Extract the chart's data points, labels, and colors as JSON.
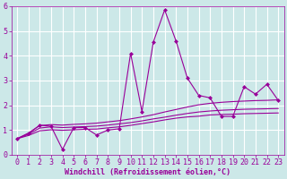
{
  "x_values": [
    0,
    1,
    2,
    3,
    4,
    5,
    6,
    7,
    8,
    9,
    10,
    11,
    12,
    13,
    14,
    15,
    16,
    17,
    18,
    19,
    20,
    21,
    22,
    23
  ],
  "line1_y": [
    0.65,
    0.85,
    1.2,
    1.15,
    0.22,
    1.1,
    1.1,
    0.8,
    1.0,
    1.05,
    4.1,
    1.75,
    4.55,
    5.85,
    4.6,
    3.1,
    2.4,
    2.3,
    1.55,
    1.55,
    2.75,
    2.45,
    2.85,
    2.2
  ],
  "line2_y": [
    0.65,
    0.88,
    1.18,
    1.22,
    1.2,
    1.23,
    1.25,
    1.28,
    1.33,
    1.38,
    1.45,
    1.53,
    1.62,
    1.73,
    1.83,
    1.93,
    2.02,
    2.08,
    2.12,
    2.15,
    2.17,
    2.19,
    2.2,
    2.22
  ],
  "line3_y": [
    0.65,
    0.83,
    1.08,
    1.13,
    1.1,
    1.12,
    1.14,
    1.16,
    1.2,
    1.25,
    1.3,
    1.37,
    1.45,
    1.52,
    1.6,
    1.67,
    1.73,
    1.77,
    1.8,
    1.82,
    1.84,
    1.85,
    1.86,
    1.87
  ],
  "line4_y": [
    0.65,
    0.78,
    0.97,
    1.01,
    0.99,
    1.01,
    1.03,
    1.04,
    1.09,
    1.13,
    1.19,
    1.26,
    1.33,
    1.41,
    1.48,
    1.53,
    1.56,
    1.61,
    1.63,
    1.64,
    1.66,
    1.67,
    1.68,
    1.69
  ],
  "line_color": "#990099",
  "bg_color": "#cce8e8",
  "grid_color": "#ffffff",
  "xlabel": "Windchill (Refroidissement éolien,°C)",
  "ylim": [
    0,
    6
  ],
  "xlim": [
    -0.5,
    23.5
  ],
  "yticks": [
    0,
    1,
    2,
    3,
    4,
    5,
    6
  ],
  "xticks": [
    0,
    1,
    2,
    3,
    4,
    5,
    6,
    7,
    8,
    9,
    10,
    11,
    12,
    13,
    14,
    15,
    16,
    17,
    18,
    19,
    20,
    21,
    22,
    23
  ],
  "xlabel_fontsize": 6,
  "tick_fontsize": 6
}
